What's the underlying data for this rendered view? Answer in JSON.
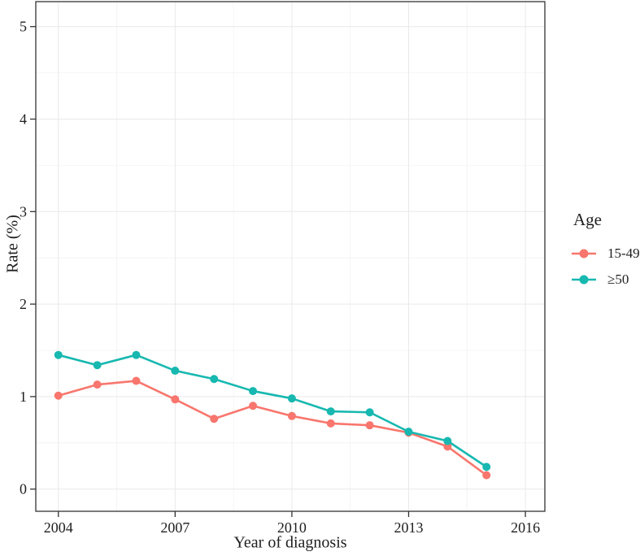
{
  "chart_data": {
    "type": "line",
    "title": "",
    "xlabel": "Year of diagnosis",
    "ylabel": "Rate (%)",
    "x": [
      2004,
      2005,
      2006,
      2007,
      2008,
      2009,
      2010,
      2011,
      2012,
      2013,
      2014,
      2015
    ],
    "series": [
      {
        "name": "15-49",
        "color": "#f8766d",
        "values": [
          1.01,
          1.13,
          1.17,
          0.97,
          0.76,
          0.9,
          0.79,
          0.71,
          0.69,
          0.61,
          0.46,
          0.15
        ]
      },
      {
        "name": "≥50",
        "color": "#17b8b0",
        "values": [
          1.45,
          1.34,
          1.45,
          1.28,
          1.19,
          1.06,
          0.98,
          0.84,
          0.83,
          0.62,
          0.52,
          0.24
        ]
      }
    ],
    "x_ticks": [
      2004,
      2007,
      2010,
      2013,
      2016
    ],
    "y_ticks": [
      0,
      1,
      2,
      3,
      4,
      5
    ],
    "x_minor": [
      2005.5,
      2008.5,
      2011.5,
      2014.5
    ],
    "y_minor": [
      0.5,
      1.5,
      2.5,
      3.5,
      4.5
    ],
    "x_domain": [
      2003.42,
      2016.5
    ],
    "y_domain": [
      -0.24,
      5.27
    ],
    "ylim": [
      0,
      5
    ],
    "grid": "major+minor",
    "legend": {
      "title": "Age",
      "position": "right"
    }
  },
  "colors": {
    "grid_major": "#e9e9e9",
    "grid_minor": "#f4f4f4",
    "border": "#333333",
    "tick": "#333333",
    "text": "#1f1f1f"
  }
}
